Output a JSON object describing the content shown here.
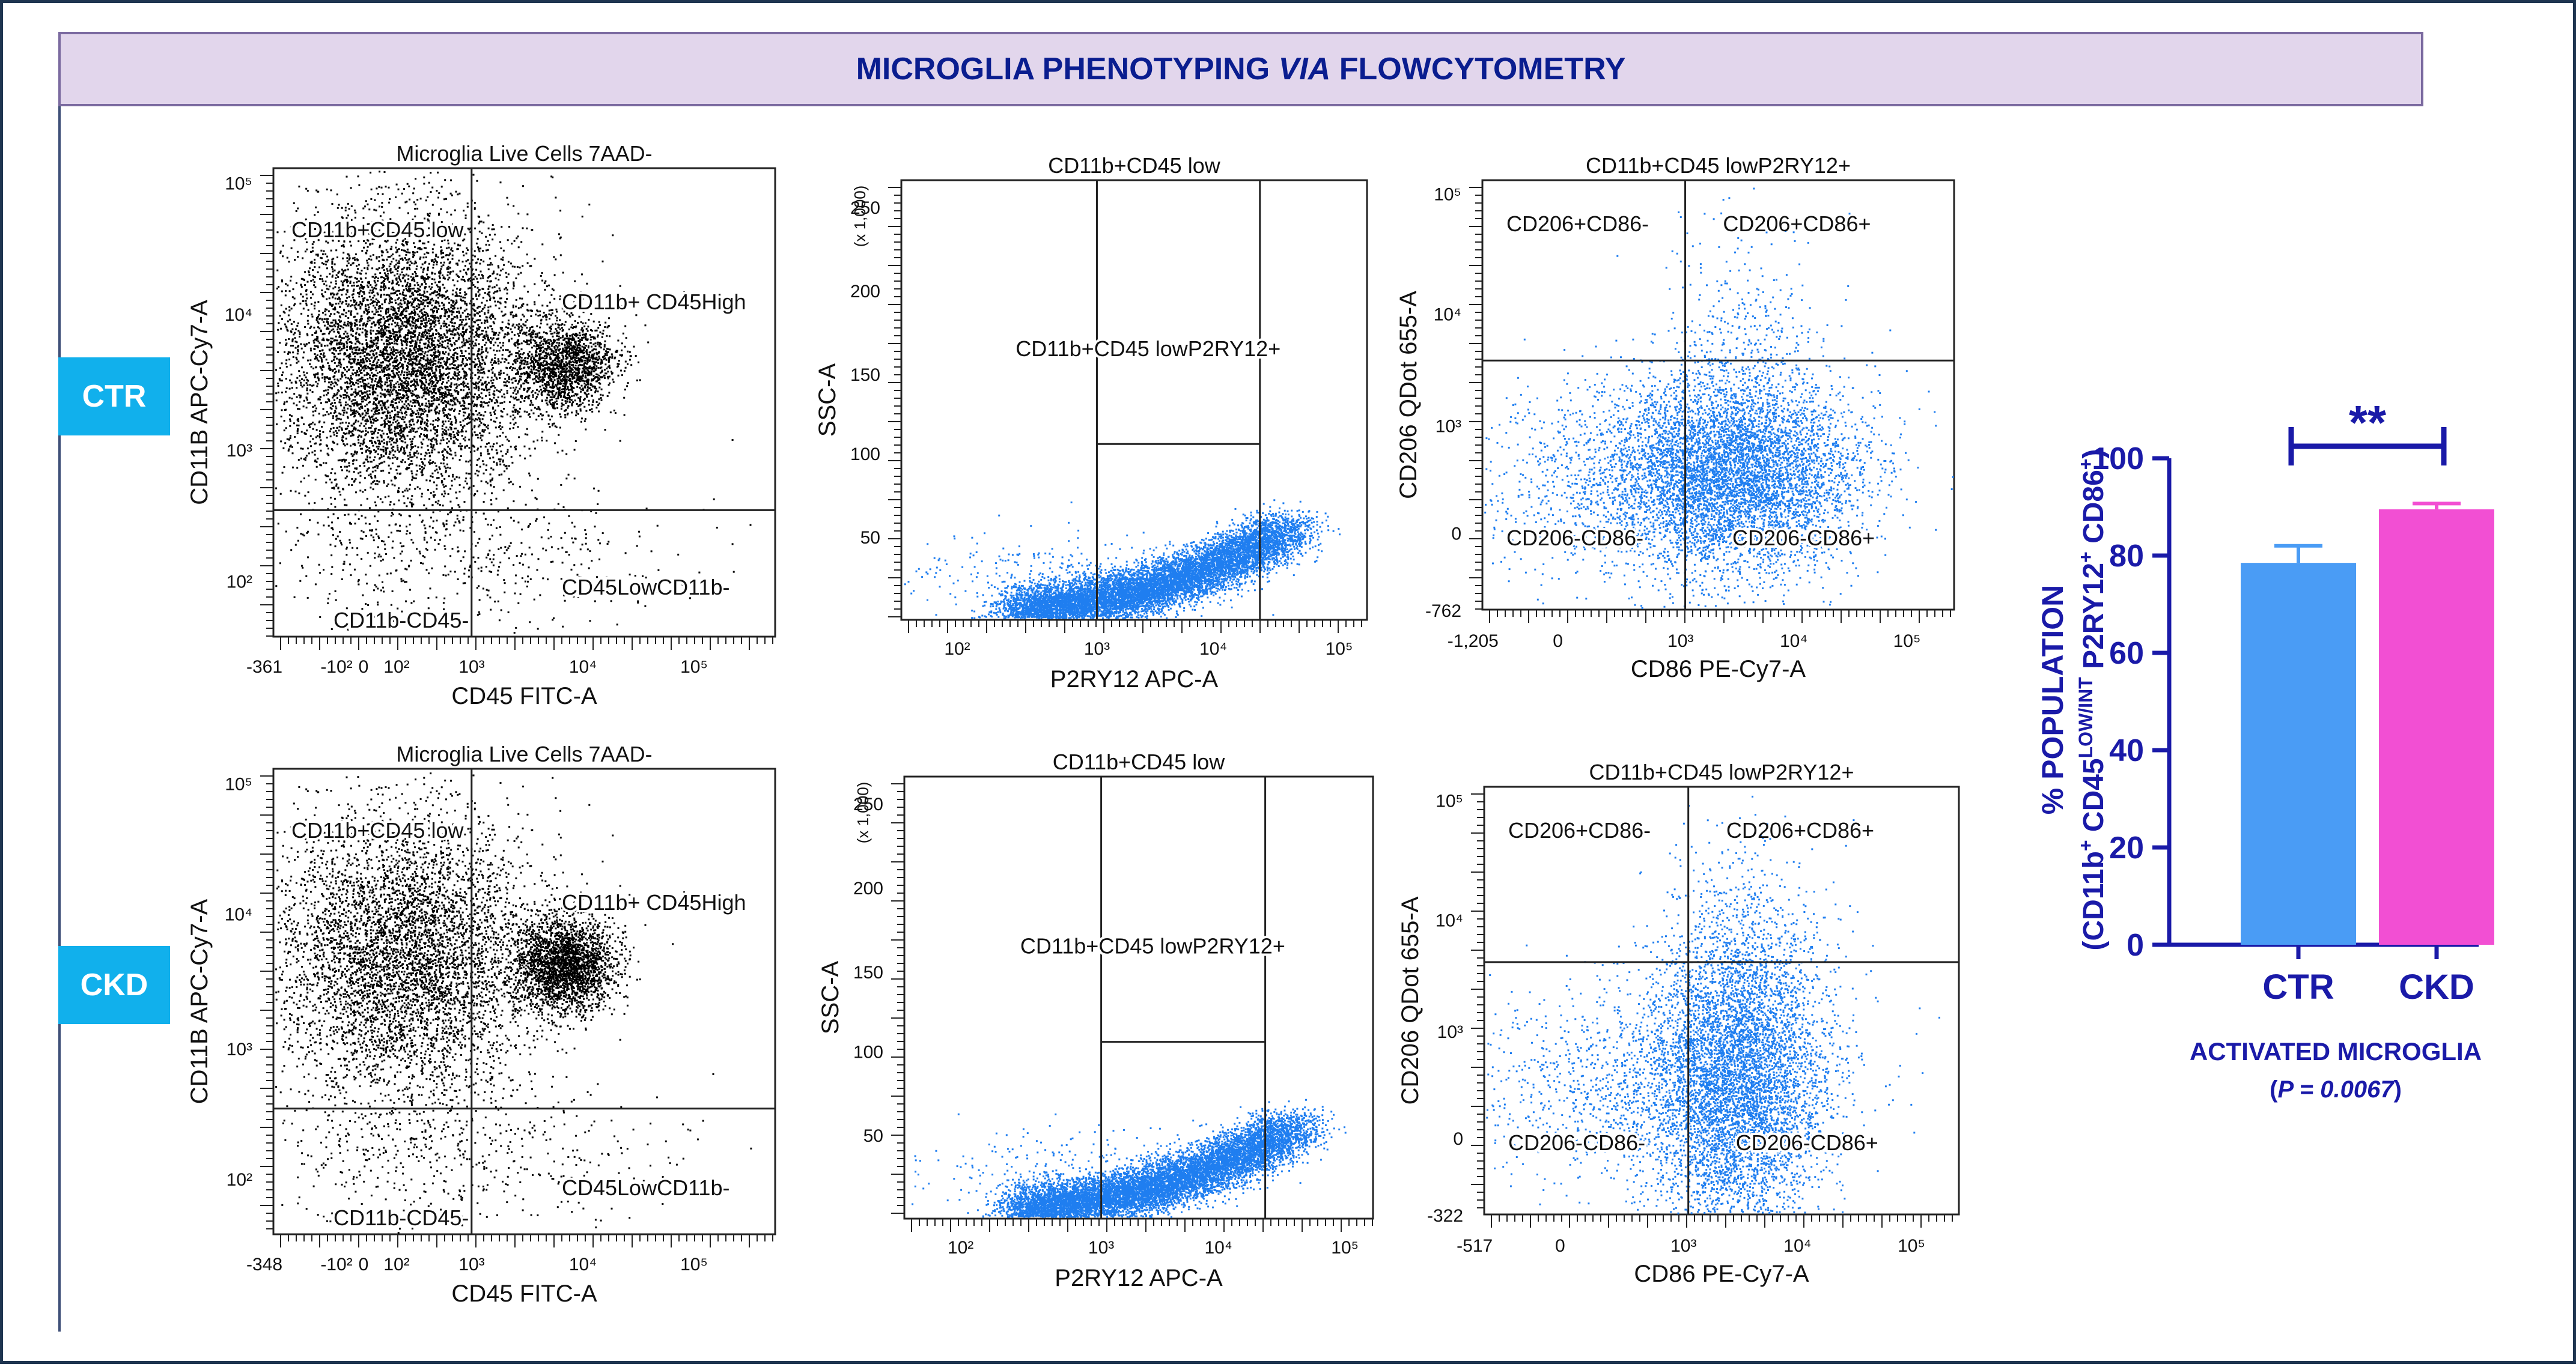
{
  "title": {
    "part1": "MICROGLIA PHENOTYPING ",
    "emph": "VIA",
    "part2": " FLOWCYTOMETRY"
  },
  "rows": [
    {
      "label": "CTR",
      "plots": [
        {
          "title": "Microglia Live Cells 7AAD-",
          "xlabel": "CD45 FITC-A",
          "ylabel": "CD11B APC-Cy7-A",
          "gates": [
            "CD11b+CD45 low",
            "CD11b+ CD45High",
            "CD45LowCD11b-",
            "CD11b-CD45-"
          ],
          "xticks": [
            "-361",
            "-10²",
            "0",
            "10²",
            "10³",
            "10⁴",
            "10⁵"
          ],
          "yticks": [
            "10²",
            "10³",
            "10⁴",
            "10⁵"
          ]
        },
        {
          "title": "CD11b+CD45 low",
          "xlabel": "P2RY12 APC-A",
          "ylabel": "SSC-A",
          "yunit": "(x 1,000)",
          "gates": [
            "CD11b+CD45 lowP2RY12+"
          ],
          "xticks": [
            "10²",
            "10³",
            "10⁴",
            "10⁵"
          ],
          "yticks": [
            "50",
            "100",
            "150",
            "200",
            "250"
          ]
        },
        {
          "title": "CD11b+CD45 lowP2RY12+",
          "xlabel": "CD86 PE-Cy7-A",
          "ylabel": "CD206 QDot 655-A",
          "gates": [
            "CD206+CD86-",
            "CD206+CD86+",
            "CD206-CD86-",
            "CD206-CD86+"
          ],
          "xticks": [
            "-1,205",
            "0",
            "10³",
            "10⁴",
            "10⁵"
          ],
          "yticks": [
            "-762",
            "0",
            "10³",
            "10⁴",
            "10⁵"
          ]
        }
      ]
    },
    {
      "label": "CKD",
      "plots": [
        {
          "title": "Microglia Live Cells 7AAD-",
          "xlabel": "CD45 FITC-A",
          "ylabel": "CD11B APC-Cy7-A",
          "gates": [
            "CD11b+CD45 low",
            "CD11b+ CD45High",
            "CD45LowCD11b-",
            "CD11b-CD45-"
          ],
          "xticks": [
            "-348",
            "-10²",
            "0",
            "10²",
            "10³",
            "10⁴",
            "10⁵"
          ],
          "yticks": [
            "10²",
            "10³",
            "10⁴",
            "10⁵"
          ]
        },
        {
          "title": "CD11b+CD45 low",
          "xlabel": "P2RY12 APC-A",
          "ylabel": "SSC-A",
          "yunit": "(x 1,000)",
          "gates": [
            "CD11b+CD45 lowP2RY12+"
          ],
          "xticks": [
            "10²",
            "10³",
            "10⁴",
            "10⁵"
          ],
          "yticks": [
            "50",
            "100",
            "150",
            "200",
            "250"
          ]
        },
        {
          "title": "CD11b+CD45 lowP2RY12+",
          "xlabel": "CD86 PE-Cy7-A",
          "ylabel": "CD206 QDot 655-A",
          "gates": [
            "CD206+CD86-",
            "CD206+CD86+",
            "CD206-CD86-",
            "CD206-CD86+"
          ],
          "xticks": [
            "-517",
            "0",
            "10³",
            "10⁴",
            "10⁵"
          ],
          "yticks": [
            "-322",
            "0",
            "10³",
            "10⁴",
            "10⁵"
          ]
        }
      ]
    }
  ],
  "chart_data": {
    "type": "bar",
    "categories": [
      "CTR",
      "CKD"
    ],
    "values": [
      78.5,
      89.5
    ],
    "errors": [
      3.5,
      1.2
    ],
    "colors": [
      "#4a9cf5",
      "#f24fd3"
    ],
    "ylim": [
      0,
      100
    ],
    "yticks": [
      "0",
      "20",
      "40",
      "60",
      "80",
      "100"
    ],
    "ylabel_line1": "% POPULATION",
    "ylabel_line2": {
      "a": "(CD11b",
      "sup1": "+",
      "b": " CD45",
      "sup2": "LOW/INT",
      "c": " P2RY12",
      "sup3": "+",
      "d": " CD86",
      "sup4": "+",
      "e": ")"
    },
    "significance": "**",
    "xlabel": "ACTIVATED MICROGLIA",
    "pvalue": {
      "open": "(",
      "text": "P = 0.0067",
      "close": ")"
    },
    "axis_color": "#1a1aa8"
  }
}
